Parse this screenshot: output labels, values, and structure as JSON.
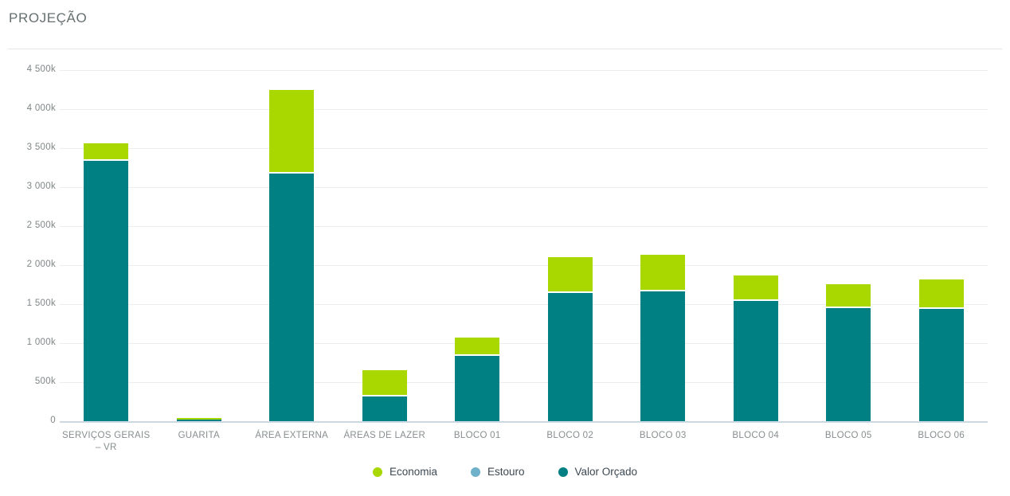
{
  "page": {
    "title": "PROJEÇÃO"
  },
  "chart_data": {
    "type": "bar",
    "stacked": true,
    "title": "PROJEÇÃO",
    "value_unit": "k",
    "categories": [
      "SERVIÇOS GERAIS – VR",
      "GUARITA",
      "ÁREA EXTERNA",
      "ÁREAS DE LAZER",
      "BLOCO 01",
      "BLOCO 02",
      "BLOCO 03",
      "BLOCO 04",
      "BLOCO 05",
      "BLOCO 06"
    ],
    "series": [
      {
        "name": "Economia",
        "color": "#a8d800",
        "values": [
          210,
          20,
          1070,
          320,
          220,
          450,
          460,
          320,
          300,
          370
        ]
      },
      {
        "name": "Estouro",
        "color": "#6fb1c9",
        "values": [
          0,
          0,
          0,
          0,
          0,
          0,
          0,
          0,
          0,
          0
        ]
      },
      {
        "name": "Valor Orçado",
        "color": "#008083",
        "values": [
          3350,
          20,
          3180,
          330,
          850,
          1650,
          1670,
          1550,
          1460,
          1450
        ]
      }
    ],
    "stack_totals": [
      3560,
      40,
      4250,
      650,
      1070,
      2100,
      2130,
      1870,
      1760,
      1820
    ],
    "ylim": [
      0,
      4500
    ],
    "y_tick_labels": [
      "4 500k",
      "4 000k",
      "3 500k",
      "3 000k",
      "2 500k",
      "2 000k",
      "1 500k",
      "1 000k",
      "500k",
      "0"
    ],
    "xlabel": "",
    "ylabel": "",
    "grid": true,
    "legend_position": "bottom",
    "legend_items": [
      "Economia",
      "Estouro",
      "Valor Orçado"
    ]
  }
}
